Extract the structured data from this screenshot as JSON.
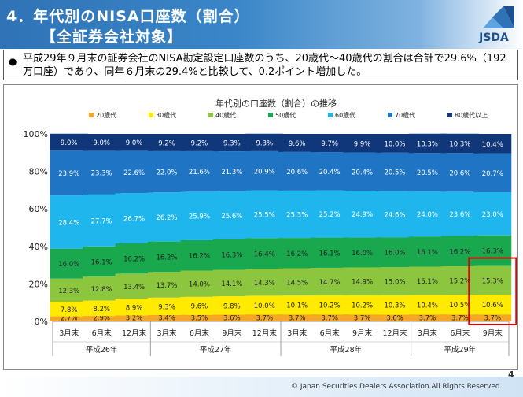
{
  "header": {
    "title_line1": "4．年代別のNISA口座数（割合）",
    "title_line2": "【全証券会社対象】",
    "logo_text": "JSDA"
  },
  "summary": {
    "bullet": "●",
    "text": "平成29年９月末の証券会社のNISA勘定設定口座数のうち、20歳代～40歳代の割合は合計で29.6%（192万口座）であり、同年６月末の29.4%と比較して、0.2ポイント増加した。"
  },
  "footer": {
    "copyright": "© Japan Securities Dealers Association.All Rights Reserved.",
    "page_number": "4"
  },
  "colors": {
    "header_blue": "#2f73b6",
    "highlight_box": "#e00000"
  },
  "chart_data": {
    "type": "bar",
    "stacked": true,
    "title": "年代別の口座数（割合）の推移",
    "categories": [
      "3月末",
      "6月末",
      "12月末",
      "3月末",
      "6月末",
      "9月末",
      "12月末",
      "3月末",
      "6月末",
      "9月末",
      "12月末",
      "3月末",
      "6月末",
      "9月末"
    ],
    "groups": [
      {
        "label": "平成26年",
        "count": 3
      },
      {
        "label": "平成27年",
        "count": 4
      },
      {
        "label": "平成28年",
        "count": 4
      },
      {
        "label": "平成29年",
        "count": 3
      }
    ],
    "series": [
      {
        "name": "20歳代",
        "color": "#f5a623",
        "values": [
          2.7,
          2.9,
          3.2,
          3.4,
          3.5,
          3.6,
          3.7,
          3.7,
          3.7,
          3.7,
          3.6,
          3.7,
          3.7,
          3.7
        ]
      },
      {
        "name": "30歳代",
        "color": "#ffea00",
        "values": [
          7.8,
          8.2,
          8.9,
          9.3,
          9.6,
          9.8,
          10.0,
          10.1,
          10.2,
          10.2,
          10.3,
          10.4,
          10.5,
          10.6
        ]
      },
      {
        "name": "40歳代",
        "color": "#8cc63f",
        "values": [
          12.3,
          12.8,
          13.4,
          13.7,
          14.0,
          14.1,
          14.3,
          14.5,
          14.7,
          14.9,
          15.0,
          15.1,
          15.2,
          15.3
        ]
      },
      {
        "name": "50歳代",
        "color": "#1aa84e",
        "values": [
          16.0,
          16.1,
          16.2,
          16.2,
          16.2,
          16.3,
          16.4,
          16.2,
          16.1,
          16.0,
          16.0,
          16.1,
          16.2,
          16.3
        ]
      },
      {
        "name": "60歳代",
        "color": "#1fb6ee",
        "values": [
          28.4,
          27.7,
          26.7,
          26.2,
          25.9,
          25.6,
          25.5,
          25.3,
          25.2,
          24.9,
          24.6,
          24.0,
          23.6,
          23.0
        ]
      },
      {
        "name": "70歳代",
        "color": "#1f74c4",
        "values": [
          23.9,
          23.3,
          22.6,
          22.0,
          21.6,
          21.3,
          20.9,
          20.6,
          20.4,
          20.4,
          20.5,
          20.5,
          20.6,
          20.7
        ]
      },
      {
        "name": "80歳代以上",
        "color": "#10377a",
        "values": [
          9.0,
          9.0,
          9.0,
          9.2,
          9.2,
          9.3,
          9.3,
          9.6,
          9.7,
          9.9,
          10.0,
          10.3,
          10.3,
          10.4
        ]
      }
    ],
    "label_suffix": "%",
    "y_ticks": [
      "0%",
      "20%",
      "40%",
      "60%",
      "80%",
      "100%"
    ],
    "ylim": [
      0,
      100
    ],
    "grid": false,
    "legend": "top",
    "highlight_category_index": 13
  }
}
